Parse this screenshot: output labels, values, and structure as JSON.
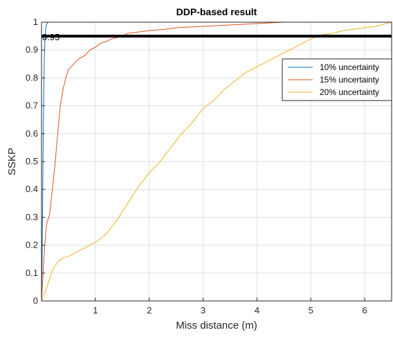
{
  "chart_data": {
    "type": "line",
    "title": "DDP-based result",
    "xlabel": "Miss distance (m)",
    "ylabel": "SSKP",
    "xlim": [
      0,
      6.5
    ],
    "ylim": [
      0,
      1
    ],
    "xticks": [
      1,
      2,
      3,
      4,
      5,
      6
    ],
    "yticks": [
      0,
      0.1,
      0.2,
      0.3,
      0.4,
      0.5,
      0.6,
      0.7,
      0.8,
      0.9,
      1
    ],
    "grid": true,
    "legend_position": "upper-right",
    "threshold": {
      "value": 0.95,
      "label": "0.95",
      "color": "#000000"
    },
    "series": [
      {
        "name": "10% uncertainty",
        "color": "#0072bd",
        "x": [
          0,
          0.01,
          0.02,
          0.03,
          0.04,
          0.05,
          0.06,
          0.07,
          0.08,
          0.09,
          0.1,
          0.12,
          0.15,
          0.2,
          0.25
        ],
        "y": [
          0,
          0.15,
          0.35,
          0.55,
          0.72,
          0.85,
          0.92,
          0.96,
          0.98,
          0.99,
          0.995,
          1,
          1,
          1,
          1
        ]
      },
      {
        "name": "15% uncertainty",
        "color": "#d95319",
        "x": [
          0,
          0.03,
          0.05,
          0.08,
          0.1,
          0.15,
          0.2,
          0.25,
          0.3,
          0.35,
          0.4,
          0.45,
          0.5,
          0.6,
          0.7,
          0.8,
          0.9,
          1.0,
          1.1,
          1.2,
          1.3,
          1.4,
          1.5,
          1.6,
          1.8,
          2.0,
          2.3,
          2.5,
          3.0,
          3.5,
          4.0,
          4.3,
          4.5,
          4.6
        ],
        "y": [
          0,
          0.1,
          0.17,
          0.25,
          0.28,
          0.31,
          0.4,
          0.49,
          0.6,
          0.7,
          0.76,
          0.8,
          0.83,
          0.85,
          0.87,
          0.88,
          0.9,
          0.91,
          0.925,
          0.93,
          0.94,
          0.945,
          0.95,
          0.96,
          0.965,
          0.97,
          0.975,
          0.98,
          0.985,
          0.99,
          0.995,
          0.998,
          1,
          1
        ]
      },
      {
        "name": "20% uncertainty",
        "color": "#edb120",
        "x": [
          0,
          0.1,
          0.2,
          0.3,
          0.4,
          0.5,
          0.6,
          0.7,
          0.8,
          1.0,
          1.2,
          1.4,
          1.6,
          1.8,
          2.0,
          2.2,
          2.4,
          2.6,
          2.8,
          3.0,
          3.2,
          3.4,
          3.6,
          3.8,
          4.0,
          4.2,
          4.4,
          4.6,
          4.8,
          5.0,
          5.2,
          5.4,
          5.6,
          5.8,
          6.0,
          6.2,
          6.4,
          6.5
        ],
        "y": [
          0,
          0.05,
          0.11,
          0.14,
          0.155,
          0.16,
          0.17,
          0.18,
          0.19,
          0.21,
          0.24,
          0.29,
          0.35,
          0.41,
          0.46,
          0.5,
          0.55,
          0.6,
          0.64,
          0.69,
          0.72,
          0.76,
          0.79,
          0.82,
          0.84,
          0.86,
          0.88,
          0.9,
          0.92,
          0.94,
          0.955,
          0.96,
          0.97,
          0.975,
          0.98,
          0.985,
          0.995,
          1
        ]
      }
    ]
  }
}
